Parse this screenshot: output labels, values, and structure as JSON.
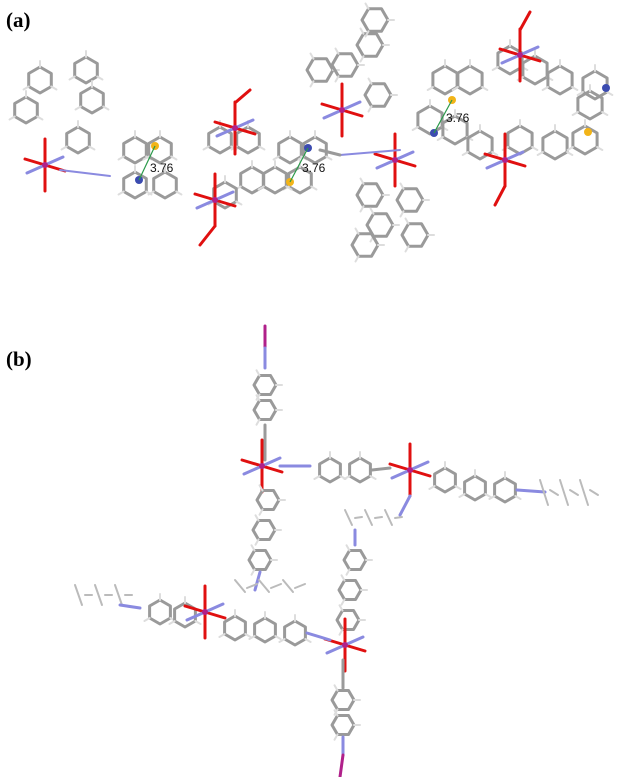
{
  "panels": [
    {
      "label": "(a)",
      "distance_labels": [
        "3.76",
        "3.76",
        "3.76"
      ]
    },
    {
      "label": "(b)"
    }
  ]
}
